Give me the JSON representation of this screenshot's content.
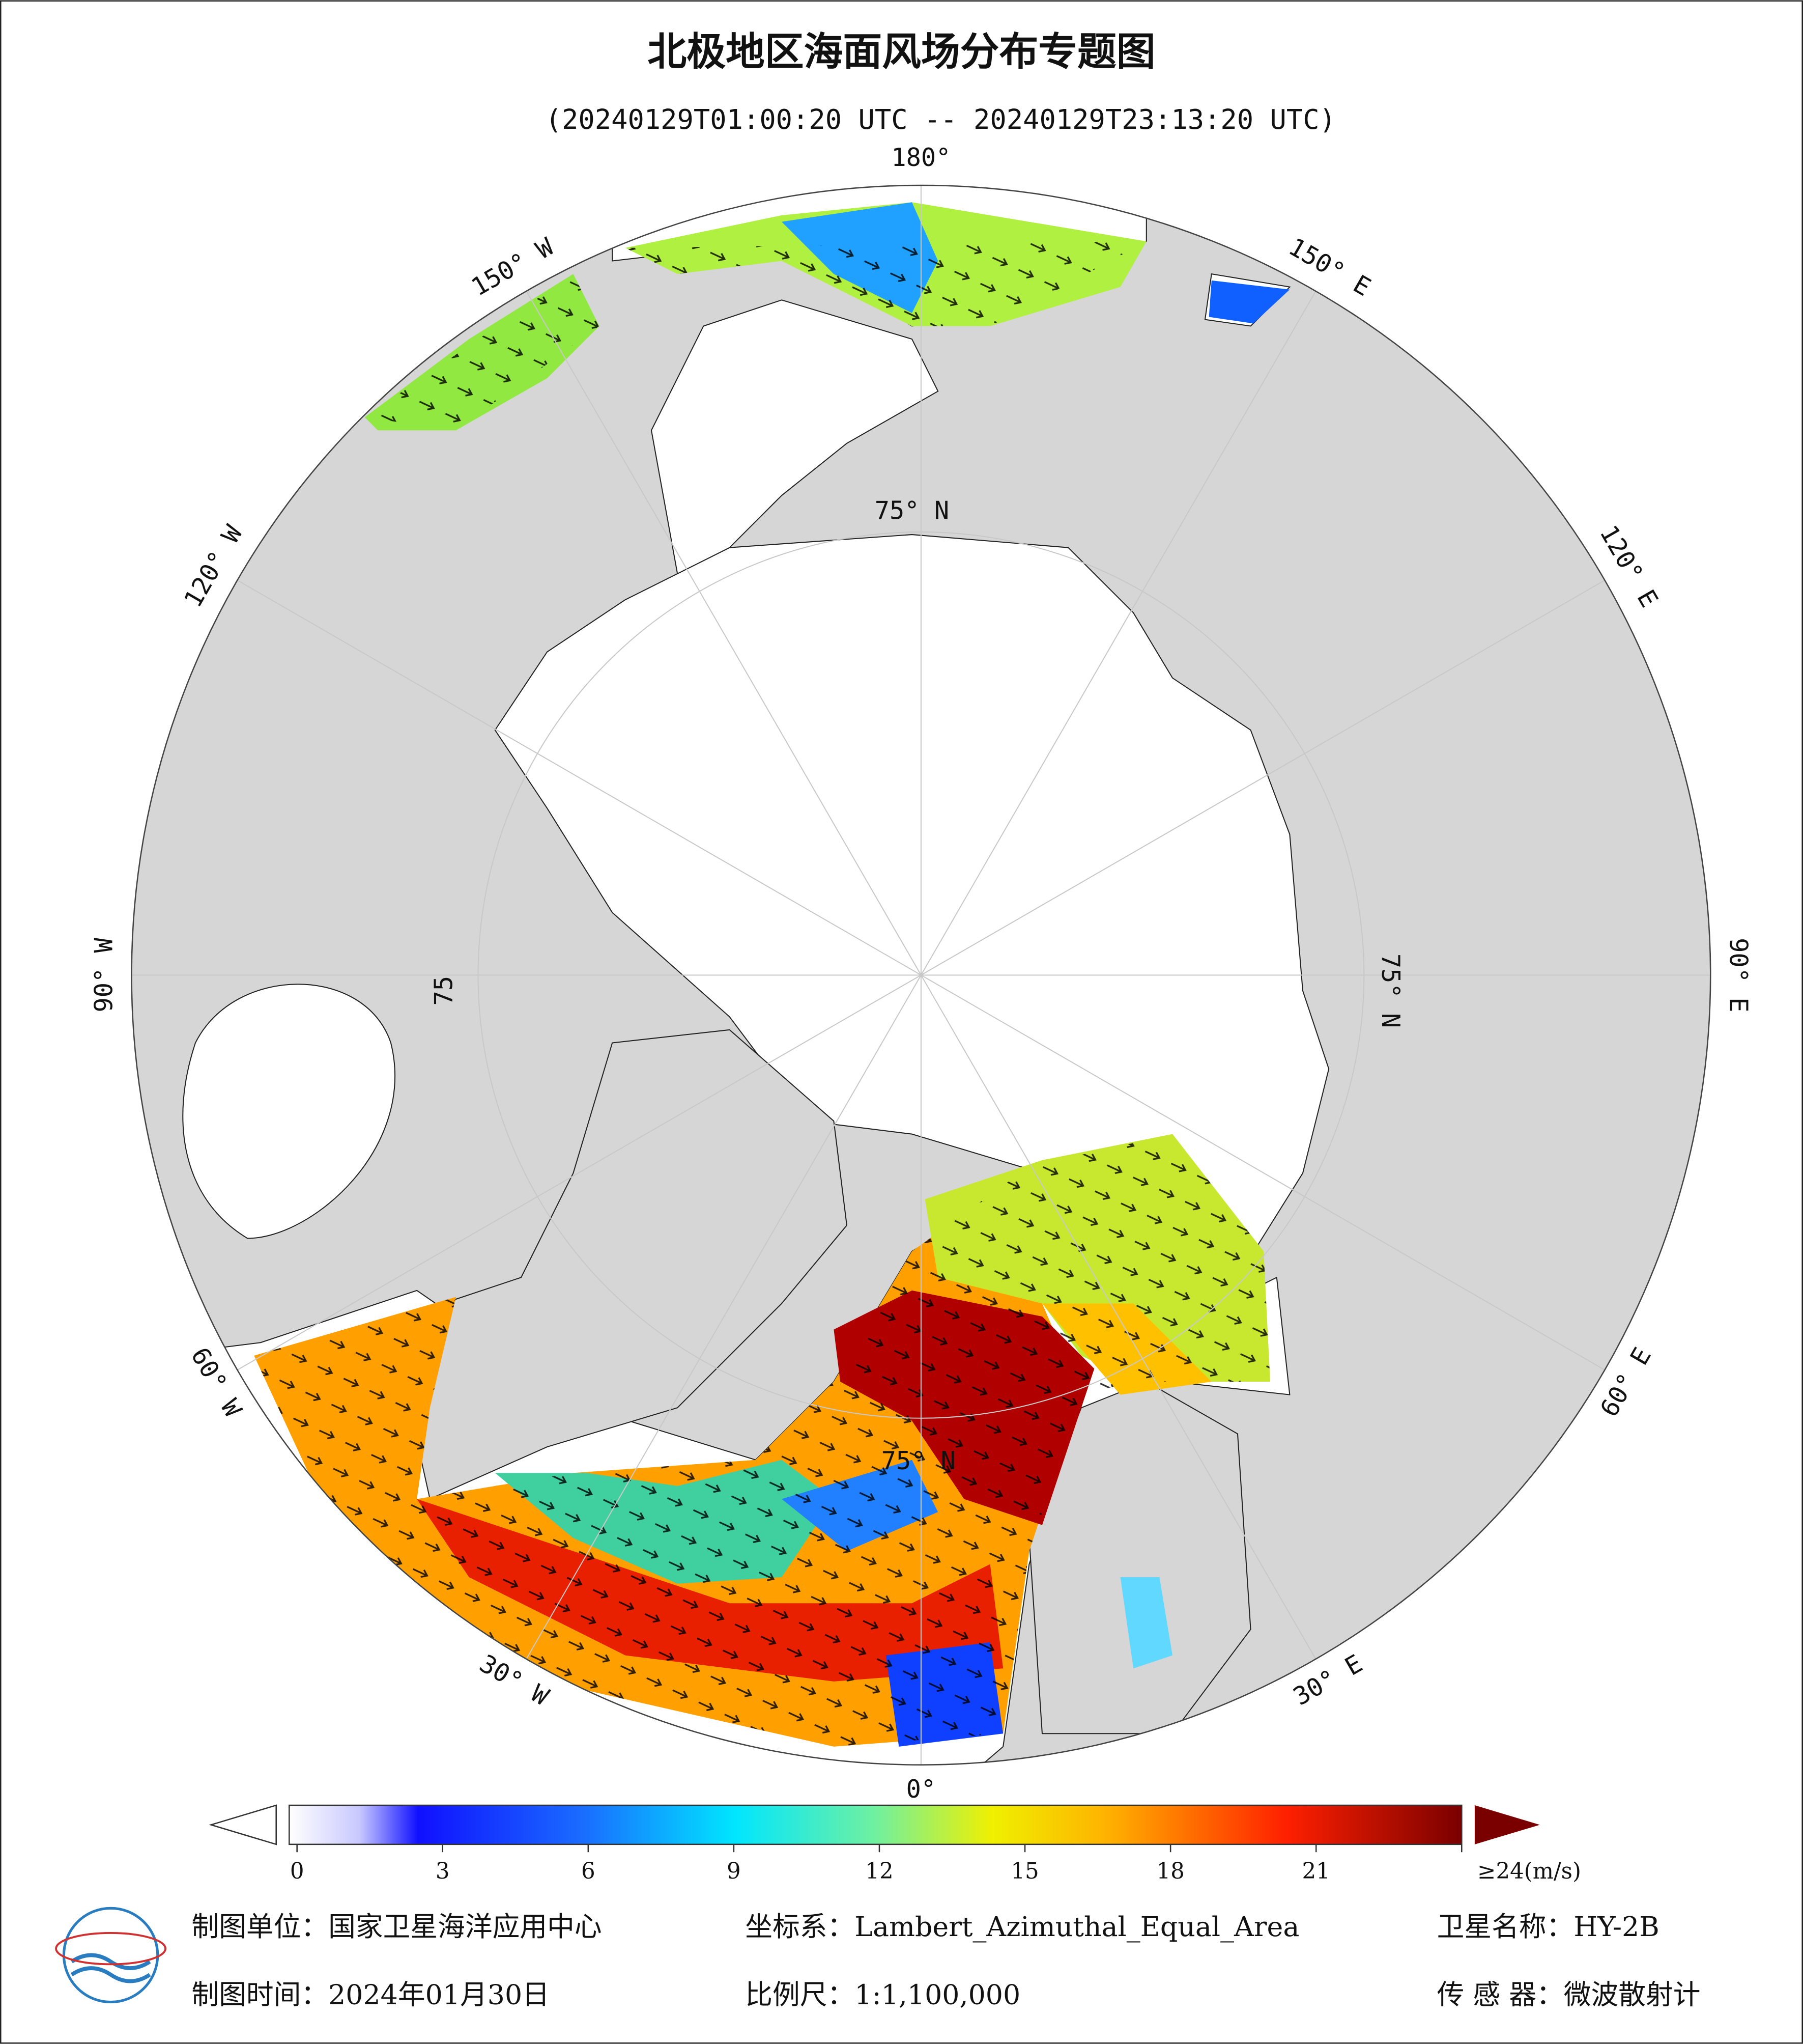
{
  "header": {
    "title": "北极地区海面风场分布专题图",
    "subtitle": "(20240129T01:00:20 UTC -- 20240129T23:13:20 UTC)"
  },
  "map": {
    "meridian_labels": [
      "180°",
      "150° E",
      "120° E",
      "90° E",
      "60° E",
      "30° E",
      "0°",
      "30° W",
      "60° W",
      "90° W",
      "120° W",
      "150° W"
    ],
    "latitude_labels": [
      "75° N",
      "75° N",
      "75° N",
      "75"
    ]
  },
  "colorbar": {
    "ticks": [
      0,
      3,
      6,
      9,
      12,
      15,
      18,
      21,
      {
        "value": 24,
        "label": "≥24(m/s)"
      }
    ]
  },
  "footer": {
    "unit": "制图单位：国家卫星海洋应用中心",
    "crs": "坐标系：Lambert_Azimuthal_Equal_Area",
    "satellite": "卫星名称：HY-2B",
    "date": "制图时间：2024年01月30日",
    "scale": "比例尺：1:1,100,000",
    "sensor": "传 感 器：微波散射计"
  }
}
